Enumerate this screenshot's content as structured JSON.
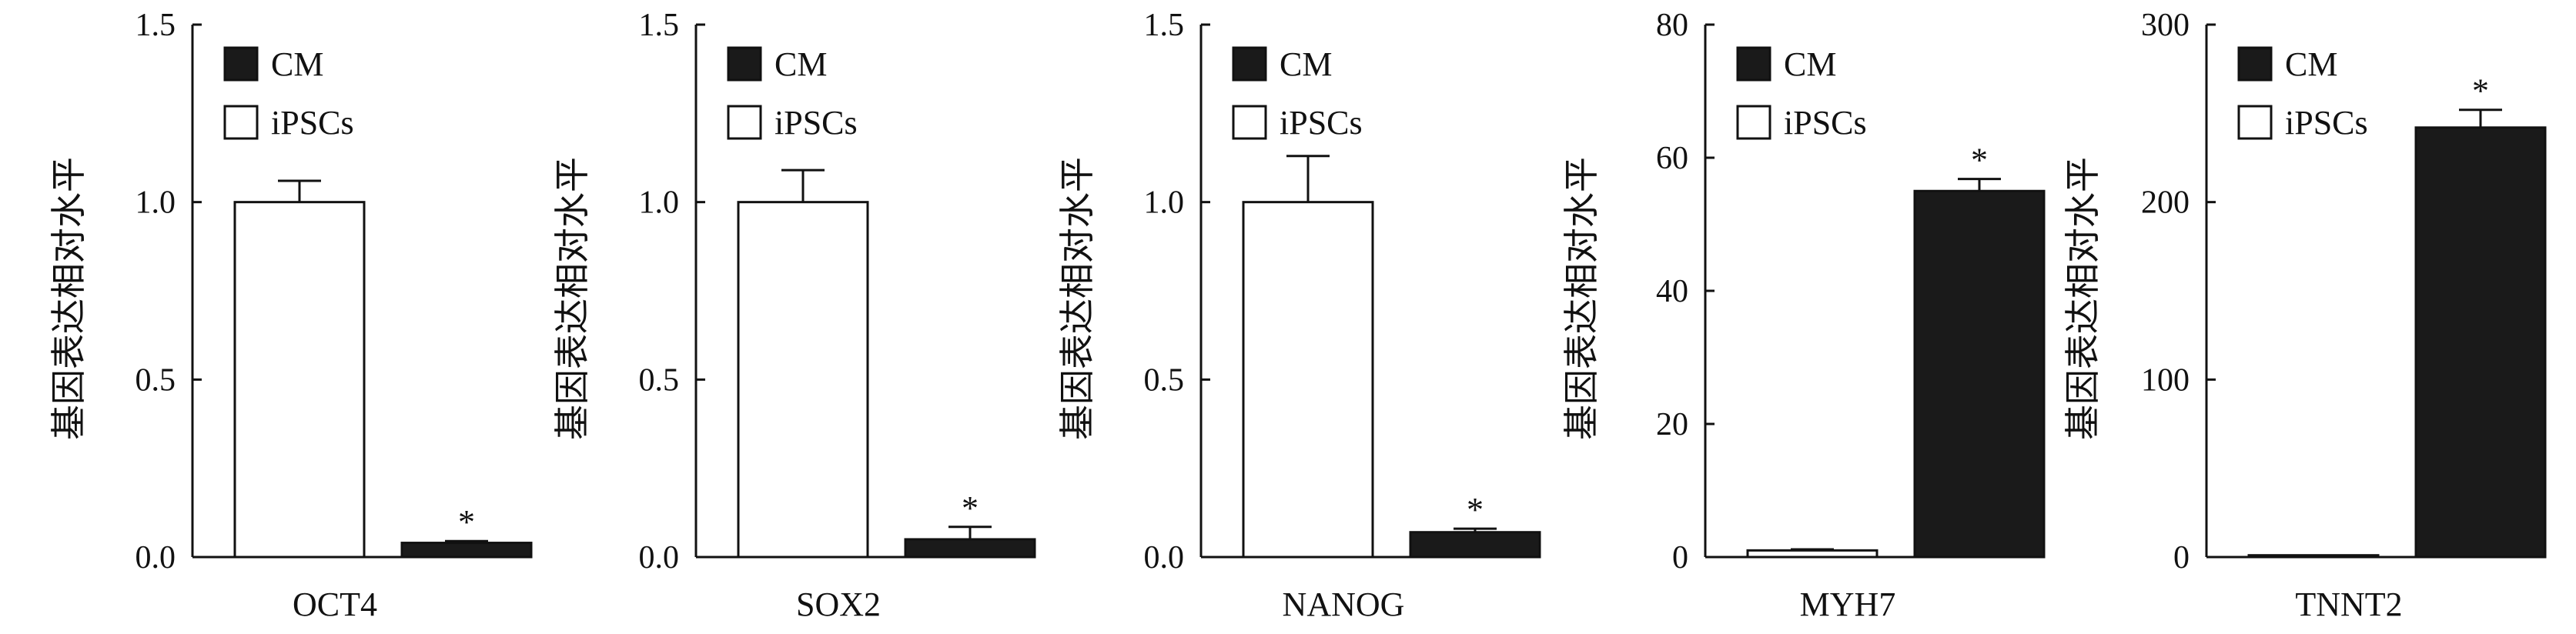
{
  "chart_data": [
    {
      "type": "bar",
      "xlabel": "OCT4",
      "ylabel": "基因表达相对水平",
      "ylim": [
        0,
        1.5
      ],
      "yticks": [
        "0.0",
        "0.5",
        "1.0",
        "1.5"
      ],
      "ytick_values": [
        0,
        0.5,
        1.0,
        1.5
      ],
      "legend": [
        "CM",
        "iPSCs"
      ],
      "legend_position": "top-left",
      "series": [
        {
          "name": "iPSCs",
          "value": 1.0,
          "error": 0.06,
          "color": "#ffffff"
        },
        {
          "name": "CM",
          "value": 0.04,
          "error": 0.005,
          "color": "#1a1a1a",
          "annotation": "*"
        }
      ]
    },
    {
      "type": "bar",
      "xlabel": "SOX2",
      "ylabel": "基因表达相对水平",
      "ylim": [
        0,
        1.5
      ],
      "yticks": [
        "0.0",
        "0.5",
        "1.0",
        "1.5"
      ],
      "ytick_values": [
        0,
        0.5,
        1.0,
        1.5
      ],
      "legend": [
        "CM",
        "iPSCs"
      ],
      "legend_position": "top-left",
      "series": [
        {
          "name": "iPSCs",
          "value": 1.0,
          "error": 0.09,
          "color": "#ffffff"
        },
        {
          "name": "CM",
          "value": 0.05,
          "error": 0.035,
          "color": "#1a1a1a",
          "annotation": "*"
        }
      ]
    },
    {
      "type": "bar",
      "xlabel": "NANOG",
      "ylabel": "基因表达相对水平",
      "ylim": [
        0,
        1.5
      ],
      "yticks": [
        "0.0",
        "0.5",
        "1.0",
        "1.5"
      ],
      "ytick_values": [
        0,
        0.5,
        1.0,
        1.5
      ],
      "legend": [
        "CM",
        "iPSCs"
      ],
      "legend_position": "top-left",
      "series": [
        {
          "name": "iPSCs",
          "value": 1.0,
          "error": 0.13,
          "color": "#ffffff"
        },
        {
          "name": "CM",
          "value": 0.07,
          "error": 0.01,
          "color": "#1a1a1a",
          "annotation": "*"
        }
      ]
    },
    {
      "type": "bar",
      "xlabel": "MYH7",
      "ylabel": "基因表达相对水平",
      "ylim": [
        0,
        80
      ],
      "yticks": [
        "0",
        "20",
        "40",
        "60",
        "80"
      ],
      "ytick_values": [
        0,
        20,
        40,
        60,
        80
      ],
      "legend": [
        "CM",
        "iPSCs"
      ],
      "legend_position": "top-left",
      "series": [
        {
          "name": "iPSCs",
          "value": 1.0,
          "error": 0.15,
          "color": "#ffffff"
        },
        {
          "name": "CM",
          "value": 55,
          "error": 1.8,
          "color": "#1a1a1a",
          "annotation": "*"
        }
      ]
    },
    {
      "type": "bar",
      "xlabel": "TNNT2",
      "ylabel": "基因表达相对水平",
      "ylim": [
        0,
        300
      ],
      "yticks": [
        "0",
        "100",
        "200",
        "300"
      ],
      "ytick_values": [
        0,
        100,
        200,
        300
      ],
      "legend": [
        "CM",
        "iPSCs"
      ],
      "legend_position": "top-left",
      "series": [
        {
          "name": "iPSCs",
          "value": 1.0,
          "error": 0.2,
          "color": "#ffffff"
        },
        {
          "name": "CM",
          "value": 242,
          "error": 10,
          "color": "#1a1a1a",
          "annotation": "*"
        }
      ]
    }
  ]
}
